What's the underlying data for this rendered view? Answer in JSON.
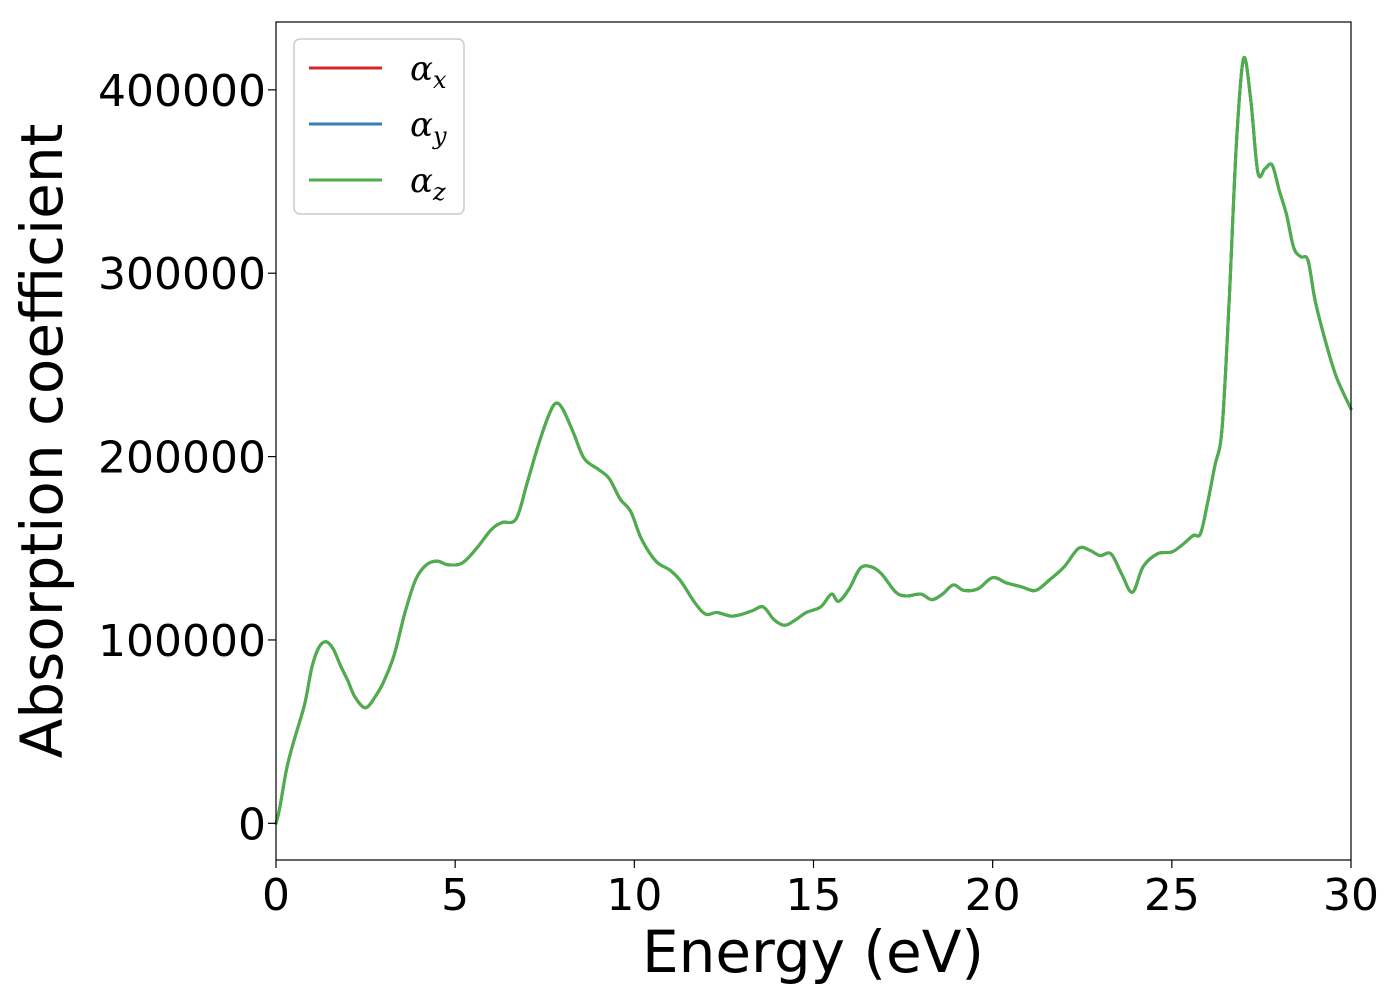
{
  "chart_data": {
    "type": "line",
    "title": "",
    "xlabel": "Energy (eV)",
    "ylabel": "Absorption coefficient",
    "xlim": [
      0,
      30
    ],
    "ylim": [
      -20000,
      437000
    ],
    "xticks": [
      0,
      5,
      10,
      15,
      20,
      25,
      30
    ],
    "xtick_labels": [
      "0",
      "5",
      "10",
      "15",
      "20",
      "25",
      "30"
    ],
    "yticks": [
      0,
      100000,
      200000,
      300000,
      400000
    ],
    "ytick_labels": [
      "0",
      "100000",
      "200000",
      "300000",
      "400000"
    ],
    "grid": false,
    "legend_position": "top-left",
    "series": [
      {
        "name": "α",
        "name_subscript": "x",
        "color": "#d62728",
        "x": [
          0,
          0.1,
          0.3,
          0.5,
          0.8,
          1.0,
          1.2,
          1.4,
          1.6,
          1.8,
          2.0,
          2.2,
          2.5,
          2.8,
          3.0,
          3.3,
          3.6,
          3.9,
          4.2,
          4.5,
          4.8,
          5.2,
          5.6,
          6.0,
          6.3,
          6.7,
          7.0,
          7.3,
          7.6,
          7.8,
          8.0,
          8.3,
          8.6,
          9.0,
          9.3,
          9.6,
          9.9,
          10.2,
          10.6,
          11.0,
          11.3,
          11.7,
          12.0,
          12.3,
          12.7,
          13.0,
          13.3,
          13.6,
          13.9,
          14.2,
          14.5,
          14.8,
          15.2,
          15.5,
          15.7,
          16.0,
          16.3,
          16.6,
          16.9,
          17.3,
          17.6,
          18.0,
          18.3,
          18.6,
          18.9,
          19.2,
          19.6,
          20.0,
          20.4,
          20.8,
          21.2,
          21.6,
          22.0,
          22.4,
          22.7,
          23.0,
          23.3,
          23.6,
          23.9,
          24.2,
          24.6,
          25.0,
          25.3,
          25.6,
          25.8,
          26.0,
          26.2,
          26.4,
          26.6,
          26.8,
          27.0,
          27.2,
          27.4,
          27.6,
          27.8,
          28.0,
          28.2,
          28.4,
          28.6,
          28.8,
          29.0,
          29.3,
          29.6,
          30.0
        ],
        "values": [
          0,
          8000,
          30000,
          45000,
          65000,
          85000,
          96000,
          99000,
          95000,
          86000,
          78000,
          69000,
          63000,
          70000,
          77000,
          92000,
          115000,
          133000,
          141000,
          143000,
          141000,
          142000,
          150000,
          160000,
          164000,
          166000,
          185000,
          205000,
          222000,
          229000,
          226000,
          213000,
          199000,
          193000,
          188000,
          177000,
          170000,
          155000,
          143000,
          138000,
          132000,
          120000,
          114000,
          115000,
          113000,
          114000,
          116000,
          118000,
          111000,
          108000,
          111000,
          115000,
          118000,
          125000,
          121000,
          128000,
          139000,
          140000,
          136000,
          126000,
          124000,
          125000,
          122000,
          125000,
          130000,
          127000,
          128000,
          134000,
          131000,
          129000,
          127000,
          133000,
          140000,
          150000,
          149000,
          146000,
          147000,
          136000,
          126000,
          140000,
          147000,
          148000,
          152000,
          157000,
          158000,
          175000,
          195000,
          215000,
          285000,
          370000,
          417000,
          395000,
          355000,
          357000,
          359000,
          345000,
          332000,
          314000,
          309000,
          307000,
          285000,
          262000,
          243000,
          226000
        ]
      },
      {
        "name": "α",
        "name_subscript": "y",
        "color": "#377eb8",
        "x": [
          0,
          0.1,
          0.3,
          0.5,
          0.8,
          1.0,
          1.2,
          1.4,
          1.6,
          1.8,
          2.0,
          2.2,
          2.5,
          2.8,
          3.0,
          3.3,
          3.6,
          3.9,
          4.2,
          4.5,
          4.8,
          5.2,
          5.6,
          6.0,
          6.3,
          6.7,
          7.0,
          7.3,
          7.6,
          7.8,
          8.0,
          8.3,
          8.6,
          9.0,
          9.3,
          9.6,
          9.9,
          10.2,
          10.6,
          11.0,
          11.3,
          11.7,
          12.0,
          12.3,
          12.7,
          13.0,
          13.3,
          13.6,
          13.9,
          14.2,
          14.5,
          14.8,
          15.2,
          15.5,
          15.7,
          16.0,
          16.3,
          16.6,
          16.9,
          17.3,
          17.6,
          18.0,
          18.3,
          18.6,
          18.9,
          19.2,
          19.6,
          20.0,
          20.4,
          20.8,
          21.2,
          21.6,
          22.0,
          22.4,
          22.7,
          23.0,
          23.3,
          23.6,
          23.9,
          24.2,
          24.6,
          25.0,
          25.3,
          25.6,
          25.8,
          26.0,
          26.2,
          26.4,
          26.6,
          26.8,
          27.0,
          27.2,
          27.4,
          27.6,
          27.8,
          28.0,
          28.2,
          28.4,
          28.6,
          28.8,
          29.0,
          29.3,
          29.6,
          30.0
        ],
        "values": [
          0,
          8000,
          30000,
          45000,
          65000,
          85000,
          96000,
          99000,
          95000,
          86000,
          78000,
          69000,
          63000,
          70000,
          77000,
          92000,
          115000,
          133000,
          141000,
          143000,
          141000,
          142000,
          150000,
          160000,
          164000,
          166000,
          185000,
          205000,
          222000,
          229000,
          226000,
          213000,
          199000,
          193000,
          188000,
          177000,
          170000,
          155000,
          143000,
          138000,
          132000,
          120000,
          114000,
          115000,
          113000,
          114000,
          116000,
          118000,
          111000,
          108000,
          111000,
          115000,
          118000,
          125000,
          121000,
          128000,
          139000,
          140000,
          136000,
          126000,
          124000,
          125000,
          122000,
          125000,
          130000,
          127000,
          128000,
          134000,
          131000,
          129000,
          127000,
          133000,
          140000,
          150000,
          149000,
          146000,
          147000,
          136000,
          126000,
          140000,
          147000,
          148000,
          152000,
          157000,
          158000,
          175000,
          195000,
          215000,
          285000,
          370000,
          417000,
          395000,
          355000,
          357000,
          359000,
          345000,
          332000,
          314000,
          309000,
          307000,
          285000,
          262000,
          243000,
          226000
        ]
      },
      {
        "name": "α",
        "name_subscript": "z",
        "color": "#4daf4a",
        "x": [
          0,
          0.1,
          0.3,
          0.5,
          0.8,
          1.0,
          1.2,
          1.4,
          1.6,
          1.8,
          2.0,
          2.2,
          2.5,
          2.8,
          3.0,
          3.3,
          3.6,
          3.9,
          4.2,
          4.5,
          4.8,
          5.2,
          5.6,
          6.0,
          6.3,
          6.7,
          7.0,
          7.3,
          7.6,
          7.8,
          8.0,
          8.3,
          8.6,
          9.0,
          9.3,
          9.6,
          9.9,
          10.2,
          10.6,
          11.0,
          11.3,
          11.7,
          12.0,
          12.3,
          12.7,
          13.0,
          13.3,
          13.6,
          13.9,
          14.2,
          14.5,
          14.8,
          15.2,
          15.5,
          15.7,
          16.0,
          16.3,
          16.6,
          16.9,
          17.3,
          17.6,
          18.0,
          18.3,
          18.6,
          18.9,
          19.2,
          19.6,
          20.0,
          20.4,
          20.8,
          21.2,
          21.6,
          22.0,
          22.4,
          22.7,
          23.0,
          23.3,
          23.6,
          23.9,
          24.2,
          24.6,
          25.0,
          25.3,
          25.6,
          25.8,
          26.0,
          26.2,
          26.4,
          26.6,
          26.8,
          27.0,
          27.2,
          27.4,
          27.6,
          27.8,
          28.0,
          28.2,
          28.4,
          28.6,
          28.8,
          29.0,
          29.3,
          29.6,
          30.0
        ],
        "values": [
          0,
          8000,
          30000,
          45000,
          65000,
          85000,
          96000,
          99000,
          95000,
          86000,
          78000,
          69000,
          63000,
          70000,
          77000,
          92000,
          115000,
          133000,
          141000,
          143000,
          141000,
          142000,
          150000,
          160000,
          164000,
          166000,
          185000,
          205000,
          222000,
          229000,
          226000,
          213000,
          199000,
          193000,
          188000,
          177000,
          170000,
          155000,
          143000,
          138000,
          132000,
          120000,
          114000,
          115000,
          113000,
          114000,
          116000,
          118000,
          111000,
          108000,
          111000,
          115000,
          118000,
          125000,
          121000,
          128000,
          139000,
          140000,
          136000,
          126000,
          124000,
          125000,
          122000,
          125000,
          130000,
          127000,
          128000,
          134000,
          131000,
          129000,
          127000,
          133000,
          140000,
          150000,
          149000,
          146000,
          147000,
          136000,
          126000,
          140000,
          147000,
          148000,
          152000,
          157000,
          158000,
          175000,
          195000,
          215000,
          285000,
          370000,
          417000,
          395000,
          355000,
          357000,
          359000,
          345000,
          332000,
          314000,
          309000,
          307000,
          285000,
          262000,
          243000,
          226000
        ]
      }
    ]
  }
}
